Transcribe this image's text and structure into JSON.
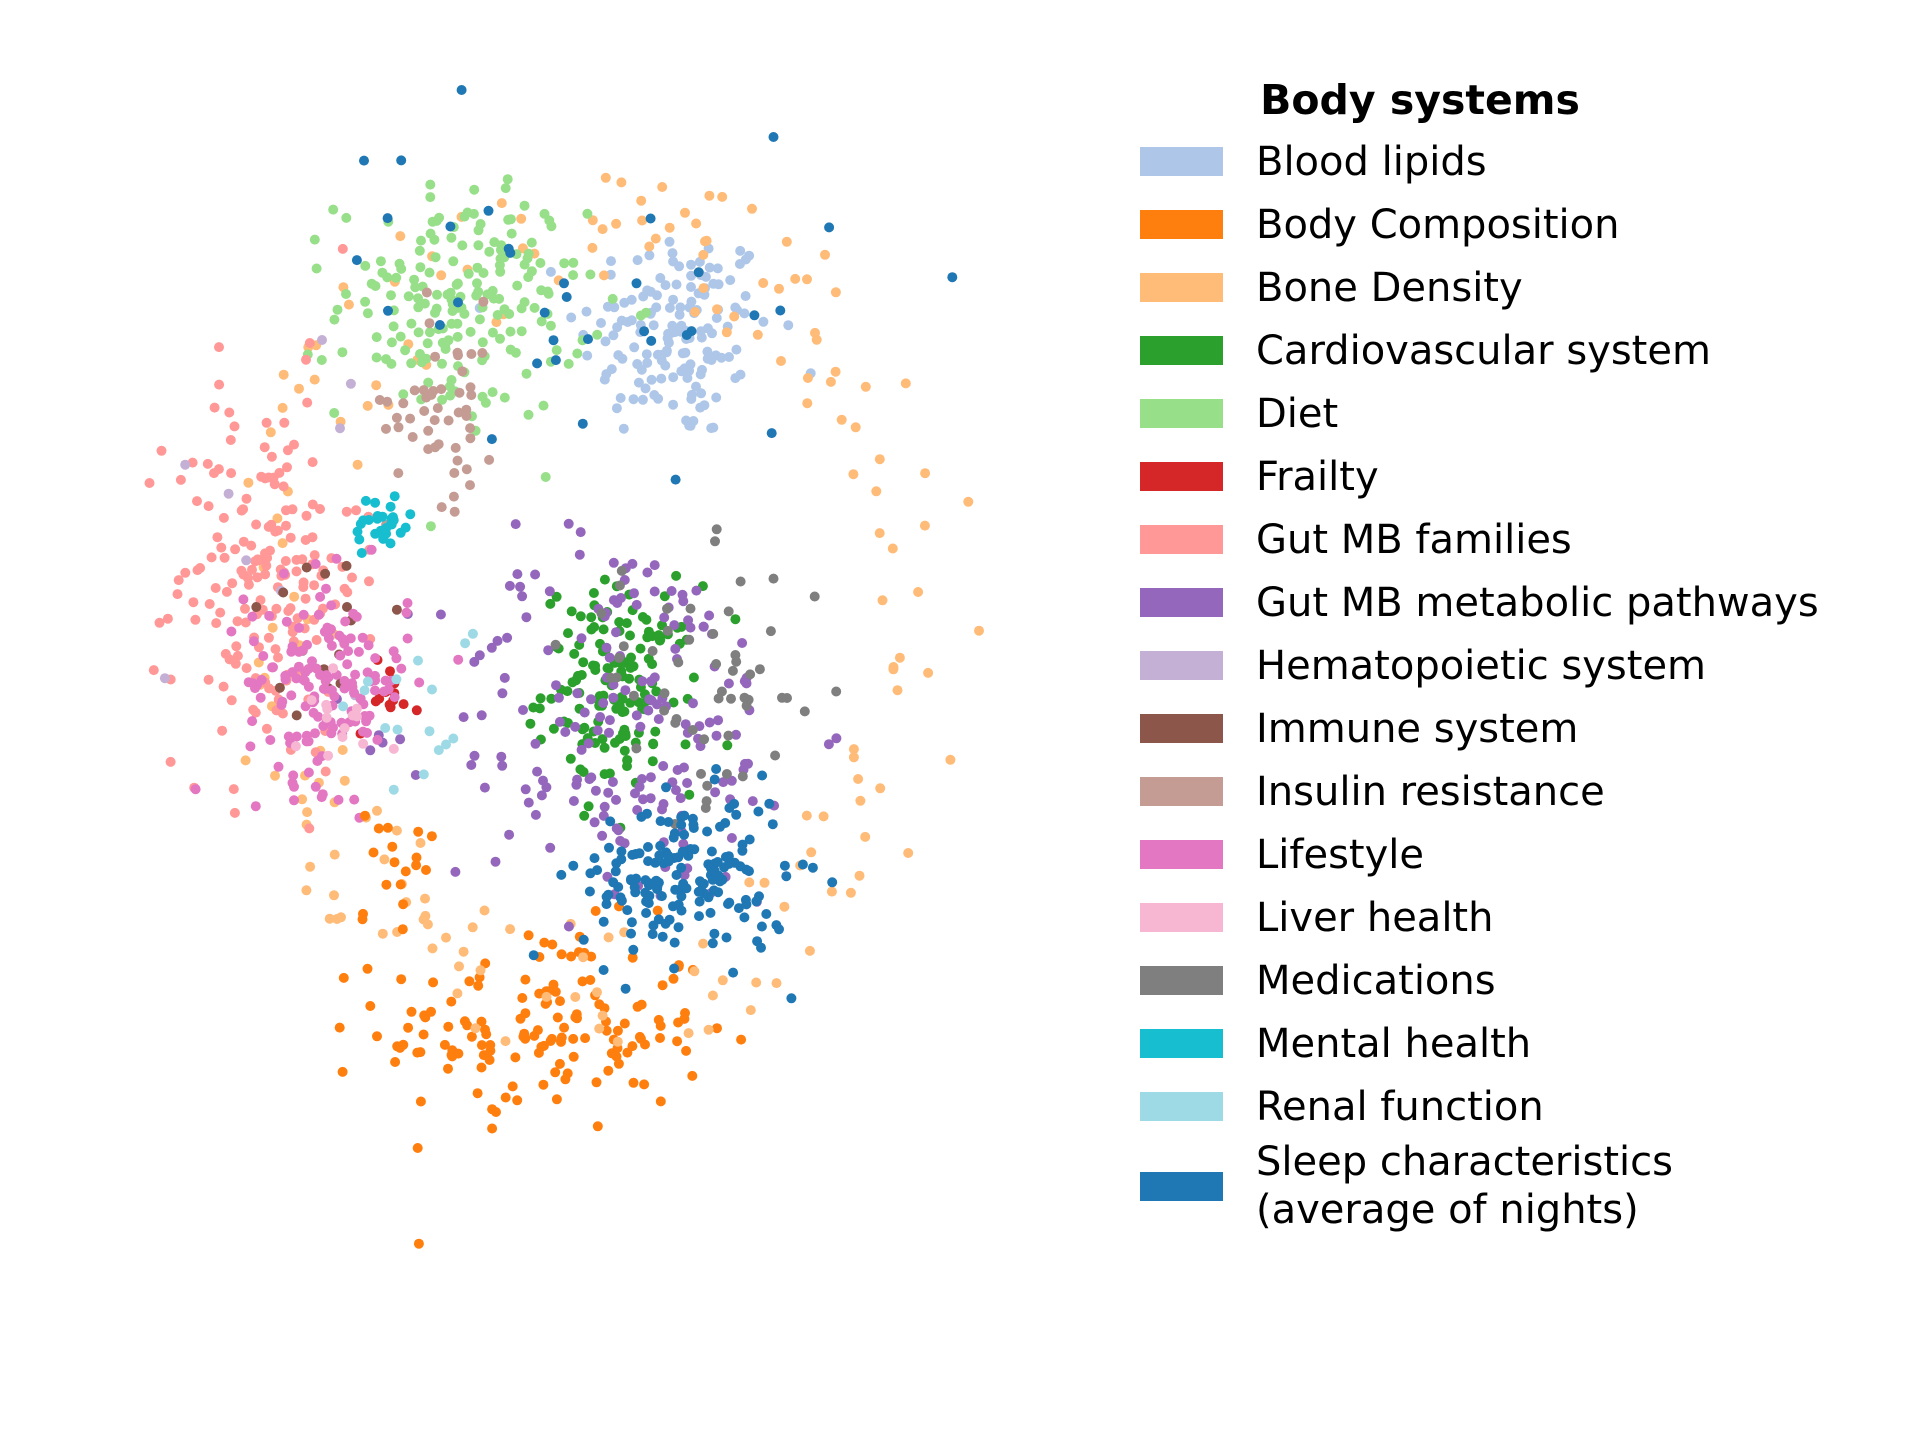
{
  "chart_data": {
    "type": "scatter",
    "title": "",
    "xlabel": "",
    "ylabel": "",
    "grid": false,
    "axes_visible": false,
    "xlim": [
      -10,
      10
    ],
    "ylim": [
      -10,
      10
    ],
    "legend": {
      "title": "Body systems",
      "placement": "right",
      "entries": [
        {
          "name": "Blood lipids",
          "color": "#aec7e8"
        },
        {
          "name": "Body Composition",
          "color": "#ff7f0e"
        },
        {
          "name": "Bone Density",
          "color": "#ffbb78"
        },
        {
          "name": "Cardiovascular system",
          "color": "#2ca02c"
        },
        {
          "name": "Diet",
          "color": "#98df8a"
        },
        {
          "name": "Frailty",
          "color": "#d62728"
        },
        {
          "name": "Gut MB families",
          "color": "#ff9896"
        },
        {
          "name": "Gut MB metabolic pathways",
          "color": "#9467bd"
        },
        {
          "name": "Hematopoietic system",
          "color": "#c5b0d5"
        },
        {
          "name": "Immune system",
          "color": "#8c564b"
        },
        {
          "name": "Insulin resistance",
          "color": "#c49c94"
        },
        {
          "name": "Lifestyle",
          "color": "#e377c2"
        },
        {
          "name": "Liver health",
          "color": "#f7b6d2"
        },
        {
          "name": "Medications",
          "color": "#7f7f7f"
        },
        {
          "name": "Mental health",
          "color": "#17becf"
        },
        {
          "name": "Renal function",
          "color": "#9edae5"
        },
        {
          "name": "Sleep characteristics\n(average of nights)",
          "color": "#1f77b4"
        }
      ]
    },
    "series": [
      {
        "name": "Blood lipids",
        "color": "#aec7e8",
        "center": [
          2.6,
          5.8
        ],
        "spread": [
          1.9,
          1.7
        ],
        "count": 150
      },
      {
        "name": "Body Composition",
        "color": "#ff7f0e",
        "center": [
          -0.2,
          -6.2
        ],
        "spread": [
          3.2,
          1.6
        ],
        "count": 150
      },
      {
        "name": "Bone Density",
        "color": "#ffbb78",
        "center": [
          1.0,
          1.0
        ],
        "spread": [
          8.0,
          7.5
        ],
        "count": 190,
        "ring": true
      },
      {
        "name": "Cardiovascular system",
        "color": "#2ca02c",
        "center": [
          1.4,
          -0.3
        ],
        "spread": [
          1.5,
          1.6
        ],
        "count": 150
      },
      {
        "name": "Diet",
        "color": "#98df8a",
        "center": [
          -2.0,
          6.3
        ],
        "spread": [
          2.4,
          1.8
        ],
        "count": 190
      },
      {
        "name": "Frailty",
        "color": "#d62728",
        "center": [
          -3.6,
          -0.4
        ],
        "spread": [
          0.6,
          0.6
        ],
        "count": 14
      },
      {
        "name": "Gut MB families",
        "color": "#ff9896",
        "center": [
          -6.2,
          1.6
        ],
        "spread": [
          1.8,
          3.0
        ],
        "count": 180
      },
      {
        "name": "Gut MB metabolic pathways",
        "color": "#9467bd",
        "center": [
          1.5,
          -0.9
        ],
        "spread": [
          3.6,
          3.0
        ],
        "count": 190
      },
      {
        "name": "Hematopoietic system",
        "color": "#c5b0d5",
        "center": [
          -6.0,
          2.0
        ],
        "spread": [
          2.5,
          4.0
        ],
        "count": 9
      },
      {
        "name": "Immune system",
        "color": "#8c564b",
        "center": [
          -5.0,
          0.8
        ],
        "spread": [
          1.8,
          1.5
        ],
        "count": 16
      },
      {
        "name": "Insulin resistance",
        "color": "#c49c94",
        "center": [
          -2.4,
          4.6
        ],
        "spread": [
          1.1,
          1.6
        ],
        "count": 50
      },
      {
        "name": "Lifestyle",
        "color": "#e377c2",
        "center": [
          -4.9,
          -0.2
        ],
        "spread": [
          1.6,
          1.6
        ],
        "count": 150
      },
      {
        "name": "Liver health",
        "color": "#f7b6d2",
        "center": [
          -4.6,
          -0.8
        ],
        "spread": [
          0.9,
          0.8
        ],
        "count": 14
      },
      {
        "name": "Medications",
        "color": "#7f7f7f",
        "center": [
          3.2,
          -0.2
        ],
        "spread": [
          2.6,
          1.9
        ],
        "count": 55
      },
      {
        "name": "Mental health",
        "color": "#17becf",
        "center": [
          -3.7,
          2.5
        ],
        "spread": [
          0.6,
          0.5
        ],
        "count": 30
      },
      {
        "name": "Renal function",
        "color": "#9edae5",
        "center": [
          -3.0,
          -0.5
        ],
        "spread": [
          1.4,
          1.6
        ],
        "count": 16
      },
      {
        "name": "Sleep characteristics\n(average of nights)",
        "color": "#1f77b4",
        "center": [
          2.8,
          -3.6
        ],
        "spread": [
          2.0,
          1.3
        ],
        "count": 170
      }
    ],
    "sparse_series": [
      {
        "name": "Sleep characteristics\n(average of nights)",
        "color": "#1f77b4",
        "center": [
          0.8,
          6.8
        ],
        "spread": [
          5.5,
          2.6
        ],
        "count": 35
      },
      {
        "name": "Body Composition",
        "color": "#ff7f0e",
        "center": [
          -3.6,
          -3.4
        ],
        "spread": [
          0.9,
          1.0
        ],
        "count": 18
      }
    ]
  }
}
